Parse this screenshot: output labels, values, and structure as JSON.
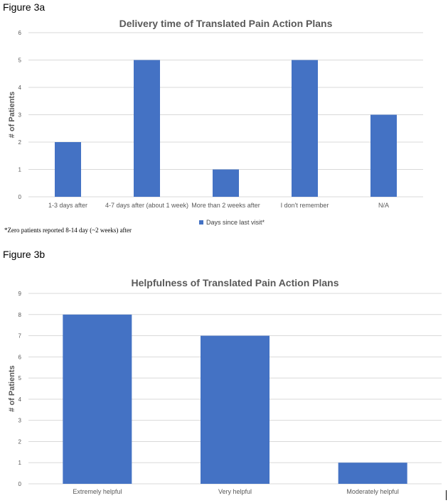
{
  "figure_a_label": "Figure 3a",
  "figure_b_label": "Figure 3b",
  "footnote": "*Zero patients reported 8-14 day (~2 weeks) after",
  "colors": {
    "bar": "#4472C4",
    "grid": "#D9D9D9",
    "text": "#595959"
  },
  "chart_data": [
    {
      "type": "bar",
      "title": "Delivery time of Translated Pain Action Plans",
      "xlabel": "",
      "ylabel": "# of Patients",
      "categories": [
        "1-3 days after",
        "4-7 days after (about 1 week)",
        "More than 2 weeks after",
        "I don't remember",
        "N/A"
      ],
      "series": [
        {
          "name": "Days since last visit*",
          "values": [
            2,
            5,
            1,
            5,
            3
          ]
        }
      ],
      "ylim": [
        0,
        6
      ],
      "yticks": [
        0,
        1,
        2,
        3,
        4,
        5,
        6
      ],
      "grid": true,
      "legend": "bottom"
    },
    {
      "type": "bar",
      "title": "Helpfulness of Translated Pain Action Plans",
      "xlabel": "",
      "ylabel": "# of Patients",
      "categories": [
        "Extremely helpful",
        "Very helpful",
        "Moderately helpful"
      ],
      "series": [
        {
          "values": [
            8,
            7,
            1
          ]
        }
      ],
      "ylim": [
        0,
        9
      ],
      "yticks": [
        0,
        1,
        2,
        3,
        4,
        5,
        6,
        7,
        8,
        9
      ],
      "grid": true,
      "legend": "none"
    }
  ]
}
